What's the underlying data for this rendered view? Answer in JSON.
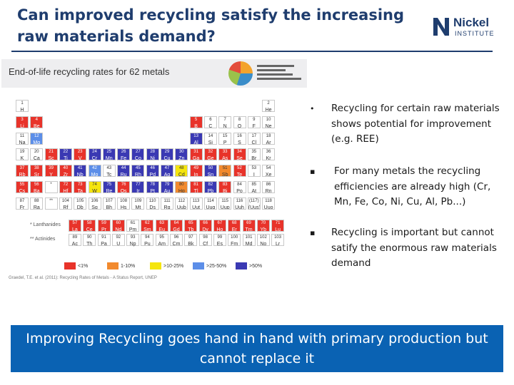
{
  "slide": {
    "title": "Can improved recycling satisfy the increasing raw materials demand?",
    "logo": {
      "name": "Nickel",
      "sub": "INSTITUTE"
    },
    "figure": {
      "title": "End-of-life recycling rates for 62 metals",
      "source": "Graedel, T.E. et al. (2011): Recycling Rates of Metals - A Status Report, UNEP",
      "lanthanides_label": "* Lanthanides",
      "actinides_label": "** Actinides",
      "legend": [
        {
          "label": "<1%",
          "color": "#e8332a"
        },
        {
          "label": "1-10%",
          "color": "#f28a2e"
        },
        {
          "label": ">10-25%",
          "color": "#f5e50e"
        },
        {
          "label": ">25-50%",
          "color": "#5c8ee8"
        },
        {
          "label": ">50%",
          "color": "#3a39b3"
        }
      ]
    },
    "bullets": [
      {
        "mark": "•",
        "text": "Recycling for certain raw materials shows potential for improvement  (e.g. REE)"
      },
      {
        "mark": "▪",
        "text": "For many metals the recycling efficiencies are already high (Cr, Mn, Fe, Co, Ni, Cu, Al, Pb...)"
      },
      {
        "mark": "▪",
        "text": "Recycling is important but cannot satify the enormous raw materials demand"
      }
    ],
    "banner": "Improving Recycling goes hand in hand with primary production but cannot replace it"
  },
  "elements": [
    {
      "n": "1",
      "s": "H",
      "r": 0,
      "c": 0,
      "k": "none"
    },
    {
      "n": "2",
      "s": "He",
      "r": 0,
      "c": 17,
      "k": "none"
    },
    {
      "n": "3",
      "s": "Li",
      "r": 1,
      "c": 0,
      "k": "red"
    },
    {
      "n": "4",
      "s": "Be",
      "r": 1,
      "c": 1,
      "k": "red"
    },
    {
      "n": "5",
      "s": "B",
      "r": 1,
      "c": 12,
      "k": "red"
    },
    {
      "n": "6",
      "s": "C",
      "r": 1,
      "c": 13,
      "k": "none"
    },
    {
      "n": "7",
      "s": "N",
      "r": 1,
      "c": 14,
      "k": "none"
    },
    {
      "n": "8",
      "s": "O",
      "r": 1,
      "c": 15,
      "k": "none"
    },
    {
      "n": "9",
      "s": "F",
      "r": 1,
      "c": 16,
      "k": "none"
    },
    {
      "n": "10",
      "s": "Ne",
      "r": 1,
      "c": 17,
      "k": "none"
    },
    {
      "n": "11",
      "s": "Na",
      "r": 2,
      "c": 0,
      "k": "none"
    },
    {
      "n": "12",
      "s": "Mg",
      "r": 2,
      "c": 1,
      "k": "lblue"
    },
    {
      "n": "13",
      "s": "Al",
      "r": 2,
      "c": 12,
      "k": "dblue"
    },
    {
      "n": "14",
      "s": "Si",
      "r": 2,
      "c": 13,
      "k": "none"
    },
    {
      "n": "15",
      "s": "P",
      "r": 2,
      "c": 14,
      "k": "none"
    },
    {
      "n": "16",
      "s": "S",
      "r": 2,
      "c": 15,
      "k": "none"
    },
    {
      "n": "17",
      "s": "Cl",
      "r": 2,
      "c": 16,
      "k": "none"
    },
    {
      "n": "18",
      "s": "Ar",
      "r": 2,
      "c": 17,
      "k": "none"
    },
    {
      "n": "19",
      "s": "K",
      "r": 3,
      "c": 0,
      "k": "none"
    },
    {
      "n": "20",
      "s": "Ca",
      "r": 3,
      "c": 1,
      "k": "none"
    },
    {
      "n": "21",
      "s": "Sc",
      "r": 3,
      "c": 2,
      "k": "red"
    },
    {
      "n": "22",
      "s": "Ti",
      "r": 3,
      "c": 3,
      "k": "dblue"
    },
    {
      "n": "23",
      "s": "V",
      "r": 3,
      "c": 4,
      "k": "red"
    },
    {
      "n": "24",
      "s": "Cr",
      "r": 3,
      "c": 5,
      "k": "dblue"
    },
    {
      "n": "25",
      "s": "Mn",
      "r": 3,
      "c": 6,
      "k": "dblue"
    },
    {
      "n": "26",
      "s": "Fe",
      "r": 3,
      "c": 7,
      "k": "dblue"
    },
    {
      "n": "27",
      "s": "Co",
      "r": 3,
      "c": 8,
      "k": "dblue"
    },
    {
      "n": "28",
      "s": "Ni",
      "r": 3,
      "c": 9,
      "k": "dblue"
    },
    {
      "n": "29",
      "s": "Cu",
      "r": 3,
      "c": 10,
      "k": "dblue"
    },
    {
      "n": "30",
      "s": "Zn",
      "r": 3,
      "c": 11,
      "k": "dblue"
    },
    {
      "n": "31",
      "s": "Ga",
      "r": 3,
      "c": 12,
      "k": "red"
    },
    {
      "n": "32",
      "s": "Ge",
      "r": 3,
      "c": 13,
      "k": "red"
    },
    {
      "n": "33",
      "s": "As",
      "r": 3,
      "c": 14,
      "k": "red"
    },
    {
      "n": "34",
      "s": "Se",
      "r": 3,
      "c": 15,
      "k": "red"
    },
    {
      "n": "35",
      "s": "Br",
      "r": 3,
      "c": 16,
      "k": "none"
    },
    {
      "n": "36",
      "s": "Kr",
      "r": 3,
      "c": 17,
      "k": "none"
    },
    {
      "n": "37",
      "s": "Rb",
      "r": 4,
      "c": 0,
      "k": "red"
    },
    {
      "n": "38",
      "s": "Sr",
      "r": 4,
      "c": 1,
      "k": "red"
    },
    {
      "n": "39",
      "s": "Y",
      "r": 4,
      "c": 2,
      "k": "red"
    },
    {
      "n": "40",
      "s": "Zr",
      "r": 4,
      "c": 3,
      "k": "red"
    },
    {
      "n": "41",
      "s": "Nb",
      "r": 4,
      "c": 4,
      "k": "dblue"
    },
    {
      "n": "42",
      "s": "Mo",
      "r": 4,
      "c": 5,
      "k": "lblue"
    },
    {
      "n": "43",
      "s": "Tc",
      "r": 4,
      "c": 6,
      "k": "none"
    },
    {
      "n": "44",
      "s": "Ru",
      "r": 4,
      "c": 7,
      "k": "dblue"
    },
    {
      "n": "45",
      "s": "Rh",
      "r": 4,
      "c": 8,
      "k": "dblue"
    },
    {
      "n": "46",
      "s": "Pd",
      "r": 4,
      "c": 9,
      "k": "dblue"
    },
    {
      "n": "47",
      "s": "Ag",
      "r": 4,
      "c": 10,
      "k": "dblue"
    },
    {
      "n": "48",
      "s": "Cd",
      "r": 4,
      "c": 11,
      "k": "yellow"
    },
    {
      "n": "49",
      "s": "In",
      "r": 4,
      "c": 12,
      "k": "red"
    },
    {
      "n": "50",
      "s": "Sn",
      "r": 4,
      "c": 13,
      "k": "dblue"
    },
    {
      "n": "51",
      "s": "Sb",
      "r": 4,
      "c": 14,
      "k": "orange"
    },
    {
      "n": "52",
      "s": "Te",
      "r": 4,
      "c": 15,
      "k": "red"
    },
    {
      "n": "53",
      "s": "I",
      "r": 4,
      "c": 16,
      "k": "none"
    },
    {
      "n": "54",
      "s": "Xe",
      "r": 4,
      "c": 17,
      "k": "none"
    },
    {
      "n": "55",
      "s": "Cs",
      "r": 5,
      "c": 0,
      "k": "red"
    },
    {
      "n": "56",
      "s": "Ba",
      "r": 5,
      "c": 1,
      "k": "red"
    },
    {
      "n": "*",
      "s": "",
      "r": 5,
      "c": 2,
      "k": "none"
    },
    {
      "n": "72",
      "s": "Hf",
      "r": 5,
      "c": 3,
      "k": "red"
    },
    {
      "n": "73",
      "s": "Ta",
      "r": 5,
      "c": 4,
      "k": "red"
    },
    {
      "n": "74",
      "s": "W",
      "r": 5,
      "c": 5,
      "k": "yellow"
    },
    {
      "n": "75",
      "s": "Re",
      "r": 5,
      "c": 6,
      "k": "dblue"
    },
    {
      "n": "76",
      "s": "Os",
      "r": 5,
      "c": 7,
      "k": "red"
    },
    {
      "n": "77",
      "s": "Ir",
      "r": 5,
      "c": 8,
      "k": "dblue"
    },
    {
      "n": "78",
      "s": "Pt",
      "r": 5,
      "c": 9,
      "k": "dblue"
    },
    {
      "n": "79",
      "s": "Au",
      "r": 5,
      "c": 10,
      "k": "dblue"
    },
    {
      "n": "80",
      "s": "Hg",
      "r": 5,
      "c": 11,
      "k": "orange"
    },
    {
      "n": "81",
      "s": "Tl",
      "r": 5,
      "c": 12,
      "k": "red"
    },
    {
      "n": "82",
      "s": "Pb",
      "r": 5,
      "c": 13,
      "k": "dblue"
    },
    {
      "n": "83",
      "s": "Bi",
      "r": 5,
      "c": 14,
      "k": "red"
    },
    {
      "n": "84",
      "s": "Po",
      "r": 5,
      "c": 15,
      "k": "none"
    },
    {
      "n": "85",
      "s": "At",
      "r": 5,
      "c": 16,
      "k": "none"
    },
    {
      "n": "86",
      "s": "Rn",
      "r": 5,
      "c": 17,
      "k": "none"
    },
    {
      "n": "87",
      "s": "Fr",
      "r": 6,
      "c": 0,
      "k": "none"
    },
    {
      "n": "88",
      "s": "Ra",
      "r": 6,
      "c": 1,
      "k": "none"
    },
    {
      "n": "**",
      "s": "",
      "r": 6,
      "c": 2,
      "k": "none"
    },
    {
      "n": "104",
      "s": "Rf",
      "r": 6,
      "c": 3,
      "k": "none"
    },
    {
      "n": "105",
      "s": "Db",
      "r": 6,
      "c": 4,
      "k": "none"
    },
    {
      "n": "106",
      "s": "Sg",
      "r": 6,
      "c": 5,
      "k": "none"
    },
    {
      "n": "107",
      "s": "Bh",
      "r": 6,
      "c": 6,
      "k": "none"
    },
    {
      "n": "108",
      "s": "Hs",
      "r": 6,
      "c": 7,
      "k": "none"
    },
    {
      "n": "109",
      "s": "Mt",
      "r": 6,
      "c": 8,
      "k": "none"
    },
    {
      "n": "110",
      "s": "Ds",
      "r": 6,
      "c": 9,
      "k": "none"
    },
    {
      "n": "111",
      "s": "Rg",
      "r": 6,
      "c": 10,
      "k": "none"
    },
    {
      "n": "112",
      "s": "Uub",
      "r": 6,
      "c": 11,
      "k": "none"
    },
    {
      "n": "113",
      "s": "Uut",
      "r": 6,
      "c": 12,
      "k": "none"
    },
    {
      "n": "114",
      "s": "Uuq",
      "r": 6,
      "c": 13,
      "k": "none"
    },
    {
      "n": "115",
      "s": "Uup",
      "r": 6,
      "c": 14,
      "k": "none"
    },
    {
      "n": "116",
      "s": "Uuh",
      "r": 6,
      "c": 15,
      "k": "none"
    },
    {
      "n": "(117)",
      "s": "(Uus)",
      "r": 6,
      "c": 16,
      "k": "none"
    },
    {
      "n": "118",
      "s": "Uuo",
      "r": 6,
      "c": 17,
      "k": "none"
    }
  ],
  "lanthanides": [
    {
      "n": "57",
      "s": "La",
      "k": "red"
    },
    {
      "n": "58",
      "s": "Ce",
      "k": "red"
    },
    {
      "n": "59",
      "s": "Pr",
      "k": "red"
    },
    {
      "n": "60",
      "s": "Nd",
      "k": "red"
    },
    {
      "n": "61",
      "s": "Pm",
      "k": "none"
    },
    {
      "n": "62",
      "s": "Sm",
      "k": "red"
    },
    {
      "n": "63",
      "s": "Eu",
      "k": "red"
    },
    {
      "n": "64",
      "s": "Gd",
      "k": "red"
    },
    {
      "n": "65",
      "s": "Tb",
      "k": "red"
    },
    {
      "n": "66",
      "s": "Dy",
      "k": "red"
    },
    {
      "n": "67",
      "s": "Ho",
      "k": "red"
    },
    {
      "n": "68",
      "s": "Er",
      "k": "red"
    },
    {
      "n": "69",
      "s": "Tm",
      "k": "red"
    },
    {
      "n": "70",
      "s": "Yb",
      "k": "red"
    },
    {
      "n": "71",
      "s": "Lu",
      "k": "red"
    }
  ],
  "actinides": [
    {
      "n": "89",
      "s": "Ac",
      "k": "none"
    },
    {
      "n": "90",
      "s": "Th",
      "k": "none"
    },
    {
      "n": "91",
      "s": "Pa",
      "k": "none"
    },
    {
      "n": "92",
      "s": "U",
      "k": "none"
    },
    {
      "n": "93",
      "s": "Np",
      "k": "none"
    },
    {
      "n": "94",
      "s": "Pu",
      "k": "none"
    },
    {
      "n": "95",
      "s": "Am",
      "k": "none"
    },
    {
      "n": "96",
      "s": "Cm",
      "k": "none"
    },
    {
      "n": "97",
      "s": "Bk",
      "k": "none"
    },
    {
      "n": "98",
      "s": "Cf",
      "k": "none"
    },
    {
      "n": "99",
      "s": "Es",
      "k": "none"
    },
    {
      "n": "100",
      "s": "Fm",
      "k": "none"
    },
    {
      "n": "101",
      "s": "Md",
      "k": "none"
    },
    {
      "n": "102",
      "s": "No",
      "k": "none"
    },
    {
      "n": "103",
      "s": "Lr",
      "k": "none"
    }
  ],
  "colors": {
    "red": "#e8332a",
    "orange": "#f28a2e",
    "yellow": "#f5e50e",
    "lblue": "#5c8ee8",
    "dblue": "#3a39b3",
    "none": "#ffffff",
    "title": "#1f3d6e",
    "banner": "#0a62b3"
  }
}
